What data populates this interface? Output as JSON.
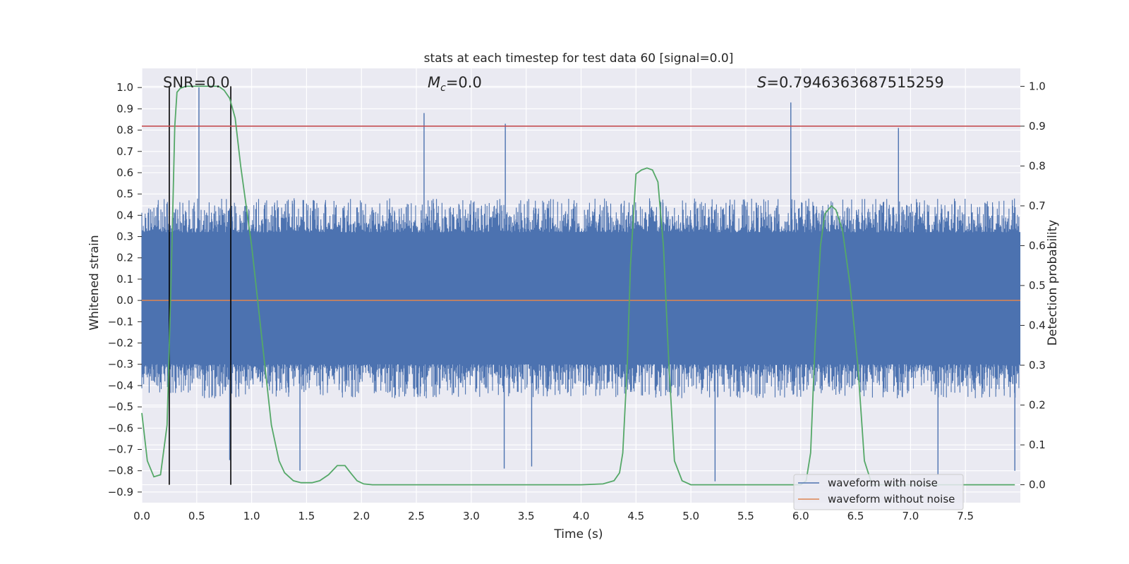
{
  "chart_data": {
    "type": "line",
    "title": "stats at each timestep for test data 60 [signal=0.0]",
    "xlabel": "Time (s)",
    "ylabel_left": "Whitened strain",
    "ylabel_right": "Detection probability",
    "xlim": [
      0.0,
      8.0
    ],
    "ylim_left": [
      -0.95,
      1.09
    ],
    "ylim_right": [
      -0.045,
      1.045
    ],
    "x_ticks": [
      "0.0",
      "0.5",
      "1.0",
      "1.5",
      "2.0",
      "2.5",
      "3.0",
      "3.5",
      "4.0",
      "4.5",
      "5.0",
      "5.5",
      "6.0",
      "6.5",
      "7.0",
      "7.5"
    ],
    "y_ticks_left": [
      "−0.9",
      "−0.8",
      "−0.7",
      "−0.6",
      "−0.5",
      "−0.4",
      "−0.3",
      "−0.2",
      "−0.1",
      "0.0",
      "0.1",
      "0.2",
      "0.3",
      "0.4",
      "0.5",
      "0.6",
      "0.7",
      "0.8",
      "0.9",
      "1.0"
    ],
    "y_ticks_right": [
      "0.0",
      "0.1",
      "0.2",
      "0.3",
      "0.4",
      "0.5",
      "0.6",
      "0.7",
      "0.8",
      "0.9",
      "1.0"
    ],
    "grid": true,
    "legend_position": "lower-right",
    "annotations": {
      "snr": "SNR=0.0",
      "mc": "=0.0",
      "mc_symbol": "M",
      "mc_sub": "c",
      "s": "=0.7946363687515259",
      "s_symbol": "S"
    },
    "threshold_line": {
      "axis": "right",
      "value": 0.9,
      "color": "#c44e52"
    },
    "vertical_markers": [
      0.25,
      0.81
    ],
    "series": [
      {
        "name": "waveform with noise",
        "color": "#4c72b0",
        "axis": "left",
        "envelope": {
          "typical_max": 0.42,
          "typical_min": -0.4,
          "core_band": [
            -0.3,
            0.32
          ],
          "spikes": [
            {
              "x": 0.52,
              "y": 1.0
            },
            {
              "x": 2.57,
              "y": 0.88
            },
            {
              "x": 3.31,
              "y": 0.83
            },
            {
              "x": 5.91,
              "y": 0.93
            },
            {
              "x": 6.89,
              "y": 0.81
            },
            {
              "x": 5.22,
              "y": -0.85
            },
            {
              "x": 1.44,
              "y": -0.8
            },
            {
              "x": 3.55,
              "y": -0.78
            },
            {
              "x": 7.25,
              "y": -0.82
            },
            {
              "x": 7.95,
              "y": -0.8
            },
            {
              "x": 0.8,
              "y": -0.75
            },
            {
              "x": 3.3,
              "y": -0.79
            }
          ]
        }
      },
      {
        "name": "waveform without noise",
        "color": "#dd8452",
        "axis": "left",
        "constant": 0.0
      },
      {
        "name": "detection probability",
        "color": "#55a868",
        "axis": "right",
        "x": [
          0.0,
          0.05,
          0.11,
          0.17,
          0.23,
          0.27,
          0.3,
          0.32,
          0.35,
          0.4,
          0.5,
          0.6,
          0.7,
          0.75,
          0.8,
          0.85,
          0.9,
          1.0,
          1.1,
          1.18,
          1.25,
          1.3,
          1.38,
          1.45,
          1.55,
          1.62,
          1.7,
          1.78,
          1.85,
          1.9,
          1.96,
          2.02,
          2.1,
          2.5,
          3.0,
          3.5,
          4.0,
          4.2,
          4.3,
          4.35,
          4.38,
          4.42,
          4.45,
          4.5,
          4.55,
          4.6,
          4.65,
          4.7,
          4.75,
          4.8,
          4.85,
          4.92,
          5.0,
          5.5,
          6.0,
          6.05,
          6.09,
          6.13,
          6.18,
          6.22,
          6.28,
          6.32,
          6.38,
          6.45,
          6.52,
          6.58,
          6.65,
          6.7,
          7.0,
          7.5,
          7.95
        ],
        "y": [
          0.18,
          0.06,
          0.02,
          0.025,
          0.15,
          0.55,
          0.9,
          0.985,
          0.995,
          1.0,
          1.0,
          1.0,
          1.0,
          0.99,
          0.97,
          0.92,
          0.8,
          0.6,
          0.35,
          0.15,
          0.06,
          0.03,
          0.01,
          0.005,
          0.005,
          0.01,
          0.025,
          0.048,
          0.048,
          0.03,
          0.01,
          0.002,
          0.0,
          0.0,
          0.0,
          0.0,
          0.0,
          0.002,
          0.01,
          0.03,
          0.08,
          0.3,
          0.55,
          0.78,
          0.79,
          0.795,
          0.79,
          0.76,
          0.6,
          0.3,
          0.06,
          0.01,
          0.0,
          0.0,
          0.0,
          0.01,
          0.08,
          0.35,
          0.6,
          0.68,
          0.7,
          0.69,
          0.64,
          0.5,
          0.3,
          0.06,
          0.0,
          0.0,
          0.0,
          0.0,
          0.0
        ]
      }
    ]
  }
}
